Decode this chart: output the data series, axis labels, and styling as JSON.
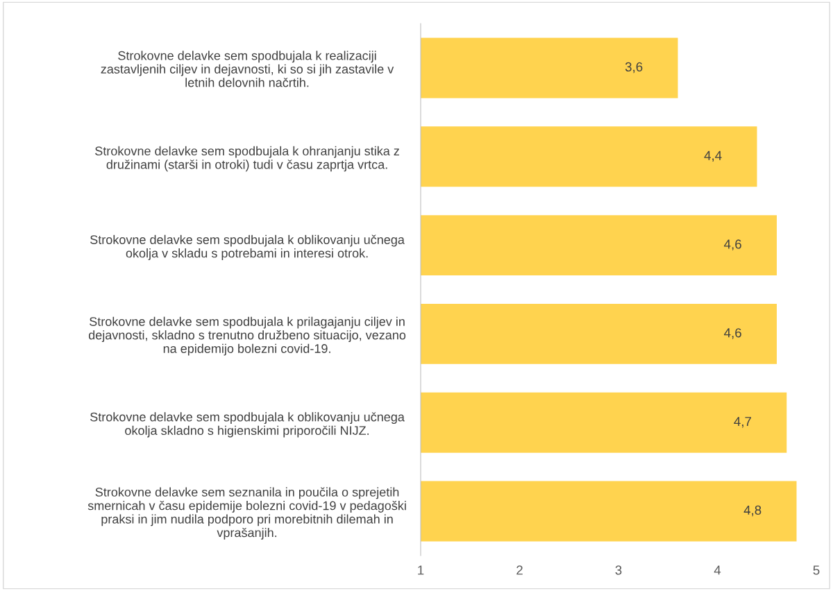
{
  "chart_data": {
    "type": "bar",
    "orientation": "horizontal",
    "categories": [
      "Strokovne delavke sem spodbujala k realizaciji\nzastavljenih ciljev in dejavnosti, ki so si jih zastavile v\nletnih delovnih načrtih.",
      "Strokovne delavke sem spodbujala k ohranjanju stika z\ndružinami (starši in otroki) tudi v času zaprtja vrtca.",
      "Strokovne delavke sem spodbujala k oblikovanju učnega\nokolja v skladu s potrebami in interesi otrok.",
      "Strokovne delavke sem spodbujala k prilagajanju ciljev in\ndejavnosti, skladno s trenutno družbeno situacijo, vezano\nna epidemijo bolezni covid-19.",
      "Strokovne delavke sem spodbujala k oblikovanju učnega\nokolja skladno s higienskimi priporočili NIJZ.",
      "Strokovne delavke sem seznanila in poučila o sprejetih\nsmernicah v času epidemije bolezni covid-19 v pedagoški\npraksi in jim nudila podporo pri morebitnih dilemah in\nvprašanjih."
    ],
    "values": [
      3.6,
      4.4,
      4.6,
      4.6,
      4.7,
      4.8
    ],
    "value_labels": [
      "3,6",
      "4,4",
      "4,6",
      "4,6",
      "4,7",
      "4,8"
    ],
    "color": "#ffd34f",
    "xlim": [
      1,
      5
    ],
    "xticks": [
      1,
      2,
      3,
      4,
      5
    ],
    "grid": false,
    "legend": false
  }
}
